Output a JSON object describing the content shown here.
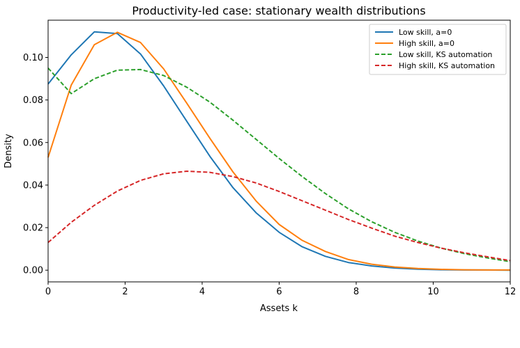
{
  "chart_data": {
    "type": "line",
    "title": "Productivity-led case: stationary wealth distributions",
    "xlabel": "Assets k",
    "ylabel": "Density",
    "xlim": [
      0,
      12
    ],
    "ylim": [
      -0.0055,
      0.1175
    ],
    "xticks": [
      0,
      2,
      4,
      6,
      8,
      10,
      12
    ],
    "yticks": [
      0.0,
      0.02,
      0.04,
      0.06,
      0.08,
      0.1
    ],
    "ytick_labels": [
      "0.00",
      "0.02",
      "0.04",
      "0.06",
      "0.08",
      "0.10"
    ],
    "grid": false,
    "legend_position": "top-right",
    "x": [
      0,
      0.6,
      1.2,
      1.8,
      2.4,
      3.0,
      3.6,
      4.2,
      4.8,
      5.4,
      6.0,
      6.6,
      7.2,
      7.8,
      8.4,
      9.0,
      9.6,
      10.2,
      10.8,
      11.4,
      12.0
    ],
    "series": [
      {
        "name": "Low skill, a=0",
        "color": "#1f77b4",
        "dash": "solid",
        "values": [
          0.0875,
          0.1012,
          0.112,
          0.1112,
          0.1016,
          0.0866,
          0.07,
          0.0535,
          0.0388,
          0.027,
          0.0178,
          0.011,
          0.0065,
          0.0036,
          0.002,
          0.001,
          0.0005,
          0.0002,
          0.0001,
          0.0001,
          0.0
        ]
      },
      {
        "name": "High skill, a=0",
        "color": "#ff7f0e",
        "dash": "solid",
        "values": [
          0.053,
          0.087,
          0.106,
          0.1118,
          0.107,
          0.0946,
          0.0785,
          0.062,
          0.0462,
          0.0325,
          0.0215,
          0.014,
          0.0088,
          0.005,
          0.0028,
          0.0015,
          0.0008,
          0.0004,
          0.0002,
          0.0001,
          0.0001
        ]
      },
      {
        "name": "Low skill, KS automation",
        "color": "#2ca02c",
        "dash": "dashed",
        "values": [
          0.095,
          0.083,
          0.09,
          0.094,
          0.0943,
          0.0915,
          0.086,
          0.079,
          0.0705,
          0.0615,
          0.0525,
          0.044,
          0.036,
          0.0288,
          0.0228,
          0.0178,
          0.0137,
          0.0104,
          0.0078,
          0.0058,
          0.004
        ]
      },
      {
        "name": "High skill, KS automation",
        "color": "#d62728",
        "dash": "dashed",
        "values": [
          0.013,
          0.0225,
          0.0305,
          0.0372,
          0.0422,
          0.0453,
          0.0465,
          0.046,
          0.044,
          0.041,
          0.037,
          0.0326,
          0.0282,
          0.0238,
          0.0198,
          0.016,
          0.013,
          0.0104,
          0.0082,
          0.0063,
          0.0045
        ]
      }
    ]
  }
}
